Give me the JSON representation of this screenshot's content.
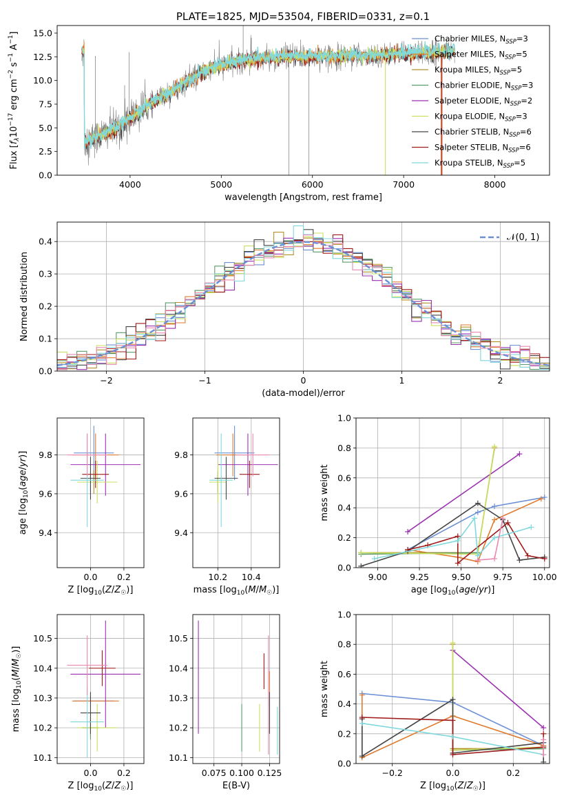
{
  "colors": {
    "Chabrier MILES": "#6a8fd4",
    "Salpeter MILES": "#e07a2e",
    "Kroupa MILES": "#b5902a",
    "Chabrier ELODIE": "#5a9a6a",
    "Salpeter ELODIE": "#9a2fb0",
    "Kroupa ELODIE": "#c8e060",
    "Chabrier STELIB": "#444444",
    "Salpeter STELIB": "#a01818",
    "Kroupa STELIB": "#7fd8dc",
    "Kroupa STELIB alt": "#e888b0",
    "data": "#777777"
  },
  "chart_data": [
    {
      "type": "line",
      "title": "PLATE=1825, MJD=53504, FIBERID=0331, z=0.1",
      "xlabel": "wavelength [Angstrom, rest frame]",
      "ylabel": "Flux [f_λ10^-17 erg cm^-2 s^-1 A^-1]",
      "xlim": [
        3200,
        8600
      ],
      "ylim": [
        0,
        15.8
      ],
      "xticks": [
        "4000",
        "5000",
        "6000",
        "7000",
        "8000"
      ],
      "yticks": [
        "0.0",
        "2.5",
        "5.0",
        "7.5",
        "10.0",
        "12.5",
        "15.0"
      ],
      "legend_position": "top-right",
      "legend": [
        {
          "label": "Chabrier MILES, N_SSP=3",
          "color": "Chabrier MILES"
        },
        {
          "label": "Salpeter MILES, N_SSP=5",
          "color": "Salpeter MILES"
        },
        {
          "label": "Kroupa MILES, N_SSP=5",
          "color": "Kroupa MILES"
        },
        {
          "label": "Chabrier ELODIE, N_SSP=3",
          "color": "Chabrier ELODIE"
        },
        {
          "label": "Salpeter ELODIE, N_SSP=2",
          "color": "Salpeter ELODIE"
        },
        {
          "label": "Kroupa ELODIE, N_SSP=3",
          "color": "Kroupa ELODIE"
        },
        {
          "label": "Chabrier STELIB, N_SSP=6",
          "color": "Chabrier STELIB"
        },
        {
          "label": "Salpeter STELIB, N_SSP=6",
          "color": "Salpeter STELIB"
        },
        {
          "label": "Kroupa STELIB, N_SSP=5",
          "color": "Kroupa STELIB"
        }
      ],
      "continuum": [
        [
          3500,
          3.5
        ],
        [
          3700,
          4.3
        ],
        [
          3900,
          5.2
        ],
        [
          4000,
          6.0
        ],
        [
          4100,
          6.7
        ],
        [
          4200,
          7.4
        ],
        [
          4400,
          8.5
        ],
        [
          4600,
          9.8
        ],
        [
          4800,
          10.9
        ],
        [
          5000,
          11.6
        ],
        [
          5200,
          12.1
        ],
        [
          5400,
          12.3
        ],
        [
          5600,
          12.4
        ],
        [
          5800,
          12.5
        ],
        [
          6000,
          12.5
        ],
        [
          6500,
          12.6
        ],
        [
          7000,
          12.8
        ],
        [
          7400,
          13.0
        ],
        [
          7600,
          13.1
        ]
      ],
      "spikes": [
        [
          3990,
          13.0
        ],
        [
          3940,
          9.5
        ],
        [
          3620,
          12.6
        ],
        [
          3470,
          13.0
        ],
        [
          3610,
          1.8
        ],
        [
          3760,
          4.5
        ],
        [
          5240,
          15.8
        ],
        [
          5330,
          14.5
        ],
        [
          5740,
          0.0
        ],
        [
          5870,
          14.3
        ],
        [
          5960,
          0.0
        ]
      ],
      "vertical_lines": [
        [
          6800,
          0.0,
          12.8,
          "Kroupa ELODIE"
        ],
        [
          7410,
          0.0,
          13.0,
          "Salpeter MILES"
        ],
        [
          7420,
          0.0,
          12.9,
          "Salpeter STELIB"
        ]
      ]
    },
    {
      "type": "histogram",
      "xlabel": "(data-model)/error",
      "ylabel": "Normed distribution",
      "xlim": [
        -2.5,
        2.5
      ],
      "ylim": [
        0,
        0.46
      ],
      "xticks": [
        "−2",
        "−1",
        "0",
        "1",
        "2"
      ],
      "yticks": [
        "0.0",
        "0.1",
        "0.2",
        "0.3",
        "0.4"
      ],
      "grid": true,
      "legend_position": "top-right",
      "legend": [
        {
          "label": "𝒩(0, 1)",
          "color": "Chabrier MILES"
        }
      ],
      "bin_width": 0.1,
      "n_series": 9
    },
    {
      "type": "scatter",
      "xlabel": "Z [log10(Z/Z☉)]",
      "ylabel": "age [log10(age/yr)]",
      "xlim": [
        -0.2,
        0.32
      ],
      "ylim": [
        9.22,
        9.99
      ],
      "xticks": [
        {
          "v": 0.0,
          "t": "0.0"
        },
        {
          "v": 0.2,
          "t": "0.2"
        }
      ],
      "yticks": [
        {
          "v": 9.4,
          "t": "9.4"
        },
        {
          "v": 9.6,
          "t": "9.6"
        },
        {
          "v": 9.8,
          "t": "9.8"
        }
      ],
      "grid": true,
      "points": [
        {
          "c": "Chabrier MILES",
          "x": 0.02,
          "y": 9.81,
          "ex": 0.12,
          "ey": 0.14
        },
        {
          "c": "Salpeter MILES",
          "x": 0.03,
          "y": 9.8,
          "ex": 0.14,
          "ey": 0.11
        },
        {
          "c": "Kroupa MILES",
          "x": 0.02,
          "y": 9.66,
          "ex": 0.06,
          "ey": 0.06
        },
        {
          "c": "Chabrier ELODIE",
          "x": 0.0,
          "y": 9.66,
          "ex": 0.08,
          "ey": 0.05
        },
        {
          "c": "Salpeter ELODIE",
          "x": 0.09,
          "y": 9.75,
          "ex": 0.21,
          "ey": 0.16
        },
        {
          "c": "Kroupa ELODIE",
          "x": 0.04,
          "y": 9.66,
          "ex": 0.12,
          "ey": 0.11
        },
        {
          "c": "Chabrier STELIB",
          "x": 0.0,
          "y": 9.68,
          "ex": 0.06,
          "ey": 0.11
        },
        {
          "c": "Salpeter STELIB",
          "x": 0.03,
          "y": 9.7,
          "ex": 0.08,
          "ey": 0.07
        },
        {
          "c": "Kroupa STELIB",
          "x": -0.02,
          "y": 9.67,
          "ex": 0.1,
          "ey": 0.24
        },
        {
          "c": "Kroupa STELIB alt",
          "x": -0.02,
          "y": 9.8,
          "ex": 0.12,
          "ey": 0.11
        }
      ]
    },
    {
      "type": "scatter",
      "xlabel": "mass [log10(M/M☉)]",
      "ylabel": "",
      "xlim": [
        10.05,
        10.57
      ],
      "ylim": [
        9.22,
        9.99
      ],
      "xticks": [
        {
          "v": 10.2,
          "t": "10.2"
        },
        {
          "v": 10.4,
          "t": "10.4"
        }
      ],
      "yticks": [
        {
          "v": 9.4,
          "t": "9.4"
        },
        {
          "v": 9.6,
          "t": "9.6"
        },
        {
          "v": 9.8,
          "t": "9.8"
        }
      ],
      "grid": true,
      "points": [
        {
          "c": "Chabrier MILES",
          "x": 10.3,
          "y": 9.81,
          "ex": 0.12,
          "ey": 0.14
        },
        {
          "c": "Salpeter MILES",
          "x": 10.29,
          "y": 9.8,
          "ex": 0.1,
          "ey": 0.11
        },
        {
          "c": "Kroupa MILES",
          "x": 10.2,
          "y": 9.66,
          "ex": 0.05,
          "ey": 0.06
        },
        {
          "c": "Chabrier ELODIE",
          "x": 10.2,
          "y": 9.66,
          "ex": 0.05,
          "ey": 0.05
        },
        {
          "c": "Salpeter ELODIE",
          "x": 10.38,
          "y": 9.75,
          "ex": 0.18,
          "ey": 0.16
        },
        {
          "c": "Kroupa ELODIE",
          "x": 10.2,
          "y": 9.66,
          "ex": 0.05,
          "ey": 0.11
        },
        {
          "c": "Chabrier STELIB",
          "x": 10.25,
          "y": 9.68,
          "ex": 0.07,
          "ey": 0.11
        },
        {
          "c": "Salpeter STELIB",
          "x": 10.39,
          "y": 9.7,
          "ex": 0.06,
          "ey": 0.07
        },
        {
          "c": "Kroupa STELIB",
          "x": 10.22,
          "y": 9.67,
          "ex": 0.07,
          "ey": 0.24
        },
        {
          "c": "Kroupa STELIB alt",
          "x": 10.41,
          "y": 9.8,
          "ex": 0.1,
          "ey": 0.11
        }
      ]
    },
    {
      "type": "line",
      "xlabel": "age [log10(age/yr)]",
      "ylabel": "mass weight",
      "xlim": [
        8.87,
        10.03
      ],
      "ylim": [
        0,
        1.0
      ],
      "xticks": [
        {
          "v": 9.0,
          "t": "9.00"
        },
        {
          "v": 9.25,
          "t": "9.25"
        },
        {
          "v": 9.5,
          "t": "9.50"
        },
        {
          "v": 9.75,
          "t": "9.75"
        },
        {
          "v": 10.0,
          "t": "10.00"
        }
      ],
      "yticks": [
        {
          "v": 0.0,
          "t": "0.0"
        },
        {
          "v": 0.2,
          "t": "0.2"
        },
        {
          "v": 0.4,
          "t": "0.4"
        },
        {
          "v": 0.6,
          "t": "0.6"
        },
        {
          "v": 0.8,
          "t": "0.8"
        },
        {
          "v": 1.0,
          "t": "1.0"
        }
      ],
      "grid": true,
      "series": [
        {
          "c": "Chabrier MILES",
          "x": [
            9.18,
            9.6,
            9.7,
            10.0
          ],
          "y": [
            0.12,
            0.37,
            0.41,
            0.47
          ]
        },
        {
          "c": "Salpeter MILES",
          "x": [
            9.18,
            9.48,
            9.6,
            9.7,
            9.98
          ],
          "y": [
            0.12,
            0.07,
            0.04,
            0.32,
            0.46
          ]
        },
        {
          "c": "Kroupa MILES",
          "x": [
            8.9,
            9.6,
            9.7
          ],
          "y": [
            0.1,
            0.1,
            0.8
          ]
        },
        {
          "c": "Chabrier ELODIE",
          "x": [
            8.9,
            9.6
          ],
          "y": [
            0.09,
            0.1
          ]
        },
        {
          "c": "Salpeter ELODIE",
          "x": [
            9.18,
            9.85
          ],
          "y": [
            0.24,
            0.76
          ]
        },
        {
          "c": "Kroupa ELODIE",
          "x": [
            8.9,
            9.6,
            9.7
          ],
          "y": [
            0.1,
            0.09,
            0.81
          ]
        },
        {
          "c": "Chabrier STELIB",
          "x": [
            8.9,
            9.18,
            9.6,
            9.75,
            9.85,
            10.0
          ],
          "y": [
            0.01,
            0.11,
            0.43,
            0.32,
            0.05,
            0.07
          ]
        },
        {
          "c": "Salpeter STELIB",
          "x": [
            9.18,
            9.3,
            9.48,
            9.48,
            9.78,
            9.9,
            10.0
          ],
          "y": [
            0.12,
            0.15,
            0.21,
            0.03,
            0.3,
            0.08,
            0.06
          ]
        },
        {
          "c": "Kroupa STELIB",
          "x": [
            8.98,
            9.48,
            9.58,
            9.6,
            9.7,
            9.92
          ],
          "y": [
            0.06,
            0.18,
            0.33,
            0.08,
            0.2,
            0.27
          ]
        },
        {
          "c": "Kroupa STELIB alt",
          "x": [
            9.6,
            9.7,
            9.75
          ],
          "y": [
            0.05,
            0.06,
            0.33
          ]
        }
      ]
    },
    {
      "type": "scatter",
      "xlabel": "Z [log10(Z/Z☉)]",
      "ylabel": "mass [log10(M/M☉)]",
      "xlim": [
        -0.2,
        0.32
      ],
      "ylim": [
        10.08,
        10.58
      ],
      "xticks": [
        {
          "v": 0.0,
          "t": "0.0"
        },
        {
          "v": 0.2,
          "t": "0.2"
        }
      ],
      "yticks": [
        {
          "v": 10.1,
          "t": "10.1"
        },
        {
          "v": 10.2,
          "t": "10.2"
        },
        {
          "v": 10.3,
          "t": "10.3"
        },
        {
          "v": 10.4,
          "t": "10.4"
        },
        {
          "v": 10.5,
          "t": "10.5"
        }
      ],
      "grid": true,
      "points": [
        {
          "c": "Chabrier MILES",
          "x": 0.02,
          "y": 10.29,
          "ex": 0.12,
          "ey": 0.0
        },
        {
          "c": "Salpeter MILES",
          "x": 0.03,
          "y": 10.29,
          "ex": 0.14,
          "ey": 0.0
        },
        {
          "c": "Kroupa MILES",
          "x": 0.0,
          "y": 10.2,
          "ex": 0.05,
          "ey": 0.03
        },
        {
          "c": "Chabrier ELODIE",
          "x": 0.0,
          "y": 10.2,
          "ex": 0.05,
          "ey": 0.04
        },
        {
          "c": "Salpeter ELODIE",
          "x": 0.09,
          "y": 10.38,
          "ex": 0.21,
          "ey": 0.18
        },
        {
          "c": "Kroupa ELODIE",
          "x": 0.04,
          "y": 10.2,
          "ex": 0.12,
          "ey": 0.08
        },
        {
          "c": "Chabrier STELIB",
          "x": 0.0,
          "y": 10.25,
          "ex": 0.06,
          "ey": 0.07
        },
        {
          "c": "Salpeter STELIB",
          "x": 0.07,
          "y": 10.4,
          "ex": 0.08,
          "ey": 0.06
        },
        {
          "c": "Kroupa STELIB",
          "x": -0.02,
          "y": 10.22,
          "ex": 0.1,
          "ey": 0.12
        },
        {
          "c": "Kroupa STELIB alt",
          "x": -0.02,
          "y": 10.41,
          "ex": 0.12,
          "ey": 0.1
        }
      ]
    },
    {
      "type": "scatter",
      "xlabel": "E(B-V)",
      "ylabel": "",
      "xlim": [
        0.056,
        0.134
      ],
      "ylim": [
        10.08,
        10.58
      ],
      "xticks": [
        {
          "v": 0.075,
          "t": "0.075"
        },
        {
          "v": 0.1,
          "t": "0.100"
        },
        {
          "v": 0.125,
          "t": "0.125"
        }
      ],
      "yticks": [
        {
          "v": 10.1,
          "t": "10.1"
        },
        {
          "v": 10.2,
          "t": "10.2"
        },
        {
          "v": 10.3,
          "t": "10.3"
        },
        {
          "v": 10.4,
          "t": "10.4"
        },
        {
          "v": 10.5,
          "t": "10.5"
        }
      ],
      "grid": true,
      "points": [
        {
          "c": "Salpeter ELODIE",
          "x": 0.061,
          "y": 10.37,
          "ex": 0.0,
          "ey": 0.19
        },
        {
          "c": "Chabrier ELODIE",
          "x": 0.1,
          "y": 10.2,
          "ex": 0.0,
          "ey": 0.08
        },
        {
          "c": "Kroupa ELODIE",
          "x": 0.116,
          "y": 10.2,
          "ex": 0.0,
          "ey": 0.08
        },
        {
          "c": "Salpeter STELIB",
          "x": 0.12,
          "y": 10.39,
          "ex": 0.0,
          "ey": 0.06
        },
        {
          "c": "Kroupa STELIB alt",
          "x": 0.124,
          "y": 10.31,
          "ex": 0.0,
          "ey": 0.2
        },
        {
          "c": "Salpeter MILES",
          "x": 0.125,
          "y": 10.33,
          "ex": 0.0,
          "ey": 0.06
        },
        {
          "c": "Chabrier STELIB",
          "x": 0.125,
          "y": 10.25,
          "ex": 0.0,
          "ey": 0.07
        },
        {
          "c": "Kroupa STELIB",
          "x": 0.132,
          "y": 10.19,
          "ex": 0.0,
          "ey": 0.08
        }
      ]
    },
    {
      "type": "line",
      "xlabel": "Z [log10(Z/Z☉)]",
      "ylabel": "mass weight",
      "xlim": [
        -0.32,
        0.32
      ],
      "ylim": [
        0,
        1.0
      ],
      "xticks": [
        {
          "v": -0.2,
          "t": "−0.2"
        },
        {
          "v": 0.0,
          "t": "0.0"
        },
        {
          "v": 0.2,
          "t": "0.2"
        }
      ],
      "yticks": [
        {
          "v": 0.0,
          "t": "0.0"
        },
        {
          "v": 0.2,
          "t": "0.2"
        },
        {
          "v": 0.4,
          "t": "0.4"
        },
        {
          "v": 0.6,
          "t": "0.6"
        },
        {
          "v": 0.8,
          "t": "0.8"
        },
        {
          "v": 1.0,
          "t": "1.0"
        }
      ],
      "grid": true,
      "series": [
        {
          "c": "Chabrier MILES",
          "x": [
            -0.3,
            0.0,
            0.3
          ],
          "y": [
            0.47,
            0.41,
            0.12
          ]
        },
        {
          "c": "Salpeter MILES",
          "x": [
            -0.3,
            -0.3,
            0.0,
            0.3
          ],
          "y": [
            0.46,
            0.04,
            0.32,
            0.12
          ]
        },
        {
          "c": "Kroupa MILES",
          "x": [
            0.0,
            0.0,
            0.3
          ],
          "y": [
            0.8,
            0.1,
            0.1
          ]
        },
        {
          "c": "Chabrier ELODIE",
          "x": [
            0.0,
            0.3
          ],
          "y": [
            0.09,
            0.1
          ]
        },
        {
          "c": "Salpeter ELODIE",
          "x": [
            0.0,
            0.3
          ],
          "y": [
            0.76,
            0.24
          ]
        },
        {
          "c": "Kroupa ELODIE",
          "x": [
            0.0,
            0.0,
            0.3
          ],
          "y": [
            0.81,
            0.09,
            0.11
          ]
        },
        {
          "c": "Chabrier STELIB",
          "x": [
            -0.3,
            -0.3,
            0.0,
            0.0,
            0.3,
            0.3
          ],
          "y": [
            0.3,
            0.05,
            0.43,
            0.07,
            0.14,
            0.01
          ]
        },
        {
          "c": "Salpeter STELIB",
          "x": [
            -0.3,
            0.0,
            0.0,
            0.3,
            0.3
          ],
          "y": [
            0.31,
            0.29,
            0.06,
            0.11,
            0.2
          ]
        },
        {
          "c": "Kroupa STELIB",
          "x": [
            -0.3,
            0.0,
            0.3
          ],
          "y": [
            0.27,
            0.18,
            0.06
          ]
        },
        {
          "c": "Kroupa STELIB alt",
          "x": [
            0.3,
            0.3
          ],
          "y": [
            0.06,
            0.16
          ]
        }
      ]
    }
  ]
}
